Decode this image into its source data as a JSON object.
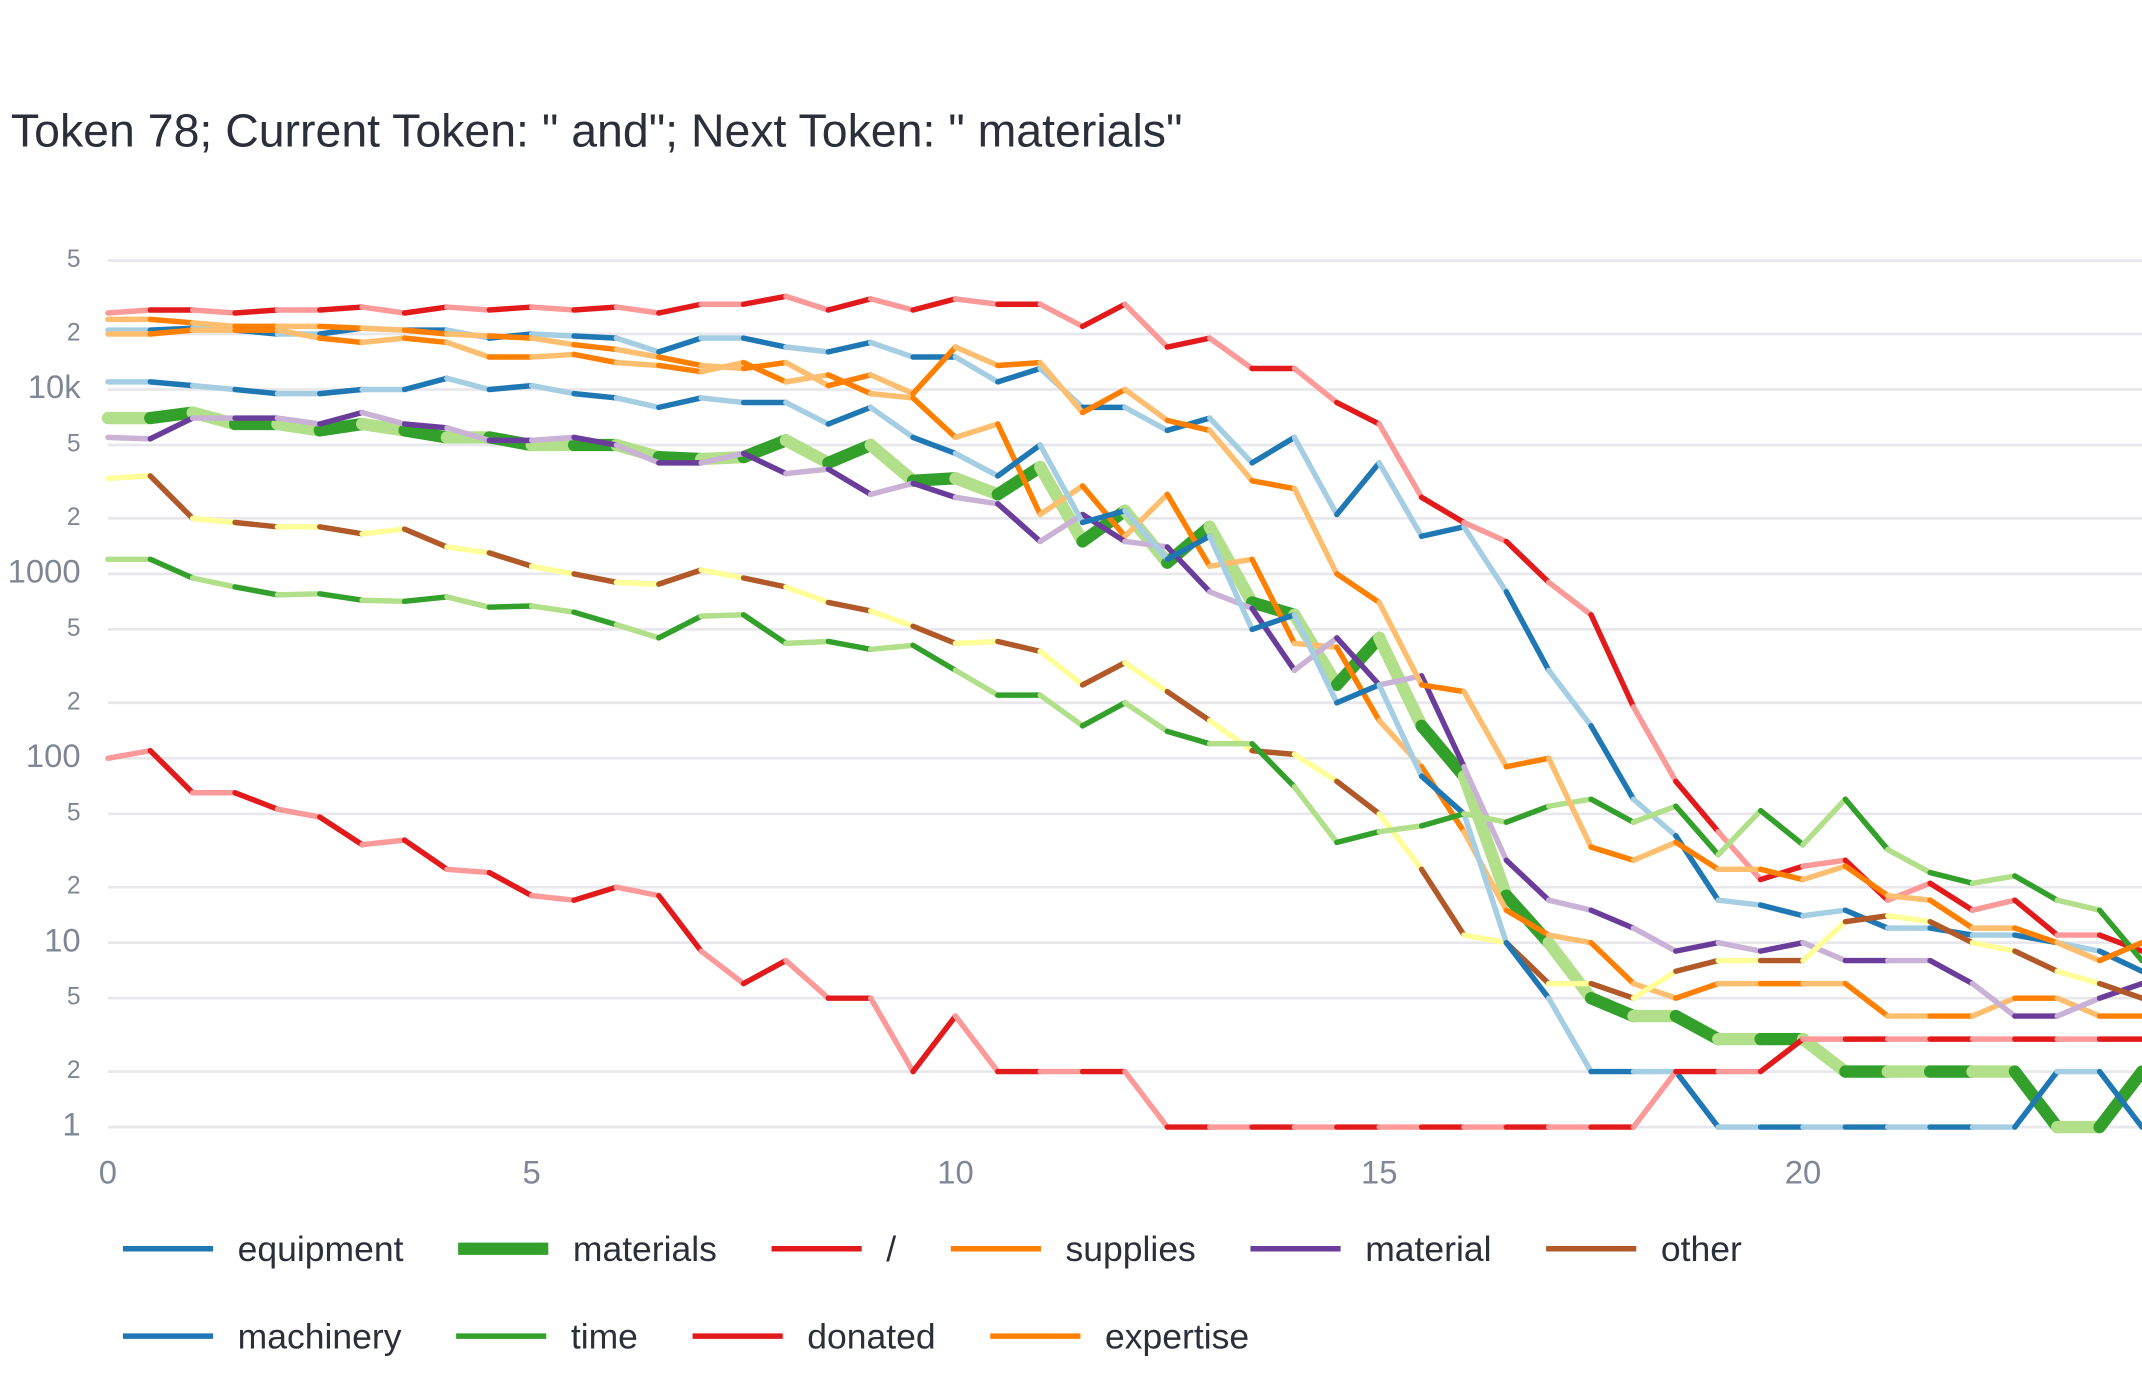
{
  "chart_data": {
    "type": "line",
    "title": "Token 78; Current Token: \" and\"; Next Token: \" materials\"",
    "x": [
      0,
      0.5,
      1,
      1.5,
      2,
      2.5,
      3,
      3.5,
      4,
      4.5,
      5,
      5.5,
      6,
      6.5,
      7,
      7.5,
      8,
      8.5,
      9,
      9.5,
      10,
      10.5,
      11,
      11.5,
      12,
      12.5,
      13,
      13.5,
      14,
      14.5,
      15,
      15.5,
      16,
      16.5,
      17,
      17.5,
      18,
      18.5,
      19,
      19.5,
      20,
      20.5,
      21,
      21.5,
      22,
      22.5,
      23,
      23.5,
      24
    ],
    "xlim": [
      0,
      24
    ],
    "xticks": [
      0,
      5,
      10,
      15,
      20
    ],
    "ylim": [
      0.55,
      60000
    ],
    "log_y": true,
    "grid": true,
    "yticks": [
      1,
      2,
      5,
      10,
      {
        "value": 20,
        "label": "2"
      },
      {
        "value": 50,
        "label": "5"
      },
      100,
      {
        "value": 200,
        "label": "2"
      },
      {
        "value": 500,
        "label": "5"
      },
      1000,
      {
        "value": 2000,
        "label": "2"
      },
      {
        "value": 5000,
        "label": "5"
      },
      {
        "value": 10000,
        "label": "10k"
      },
      {
        "value": 20000,
        "label": "2"
      },
      {
        "value": 50000,
        "label": "5"
      }
    ],
    "legend": "bottom",
    "series": [
      {
        "name": "equipment",
        "colors": [
          "#1f78b4",
          "#a6cee3"
        ],
        "width": 4,
        "values": [
          21000,
          21000,
          21500,
          21000,
          20000,
          20000,
          21500,
          21000,
          21000,
          19000,
          20000,
          19500,
          19000,
          16000,
          19000,
          19000,
          17000,
          16000,
          18000,
          15000,
          15000,
          11000,
          13000,
          8000,
          8000,
          6000,
          7000,
          4000,
          5500,
          2100,
          4000,
          1600,
          1800,
          800,
          300,
          150,
          60,
          38,
          17,
          16,
          14,
          15,
          12,
          12,
          11,
          11,
          10,
          9,
          7
        ]
      },
      {
        "name": "materials",
        "colors": [
          "#33a02c",
          "#b2df8a"
        ],
        "width": 9,
        "values": [
          7000,
          7000,
          7500,
          6500,
          6500,
          6000,
          6500,
          6000,
          5500,
          5500,
          5000,
          5000,
          5000,
          4300,
          4200,
          4300,
          5300,
          4000,
          5000,
          3200,
          3300,
          2700,
          3800,
          1500,
          2200,
          1150,
          1800,
          700,
          600,
          250,
          450,
          150,
          80,
          18,
          10,
          5,
          4,
          4,
          3,
          3,
          3,
          2,
          2,
          2,
          2,
          2,
          1,
          1,
          2
        ]
      },
      {
        "name": "/",
        "colors": [
          "#e31a1c",
          "#fb9a99"
        ],
        "width": 4,
        "values": [
          26000,
          27000,
          27000,
          26000,
          27000,
          27000,
          28000,
          26000,
          28000,
          27000,
          28000,
          27000,
          28000,
          26000,
          29000,
          29000,
          32000,
          27000,
          31000,
          27000,
          31000,
          29000,
          29000,
          22000,
          29000,
          17000,
          19000,
          13000,
          13000,
          8500,
          6500,
          2600,
          1900,
          1500,
          900,
          600,
          190,
          75,
          40,
          22,
          26,
          28,
          17,
          21,
          15,
          17,
          11,
          11,
          9
        ]
      },
      {
        "name": "supplies",
        "colors": [
          "#ff7f00",
          "#fdbf6f"
        ],
        "width": 4,
        "values": [
          20000,
          20000,
          21000,
          21000,
          21000,
          19000,
          18000,
          19000,
          18000,
          15000,
          15000,
          15500,
          14000,
          13500,
          12500,
          14000,
          11000,
          12000,
          9500,
          9000,
          5500,
          6500,
          2100,
          3000,
          1600,
          2700,
          1100,
          1200,
          420,
          400,
          160,
          90,
          40,
          15,
          11,
          10,
          6,
          5,
          6,
          6,
          6,
          6,
          4,
          4,
          4,
          5,
          5,
          4,
          4
        ]
      },
      {
        "name": "material",
        "colors": [
          "#6a3d9a",
          "#cab2d6"
        ],
        "width": 4,
        "values": [
          5500,
          5400,
          7000,
          7000,
          7000,
          6500,
          7500,
          6500,
          6200,
          5300,
          5300,
          5500,
          5000,
          4000,
          4000,
          4500,
          3500,
          3700,
          2700,
          3100,
          2600,
          2400,
          1500,
          2100,
          1500,
          1400,
          800,
          650,
          300,
          450,
          250,
          280,
          90,
          28,
          17,
          15,
          12,
          9,
          10,
          9,
          10,
          8,
          8,
          8,
          6,
          4,
          4,
          5,
          6
        ]
      },
      {
        "name": "other",
        "colors": [
          "#b15928",
          "#ffff99"
        ],
        "width": 4,
        "values": [
          3300,
          3400,
          2000,
          1900,
          1800,
          1800,
          1650,
          1750,
          1400,
          1300,
          1100,
          1000,
          900,
          880,
          1050,
          950,
          850,
          700,
          630,
          520,
          420,
          430,
          380,
          250,
          330,
          230,
          160,
          110,
          105,
          75,
          50,
          25,
          11,
          10,
          6,
          6,
          5,
          7,
          8,
          8,
          8,
          13,
          14,
          13,
          10,
          9,
          7,
          6,
          5
        ]
      },
      {
        "name": "machinery",
        "colors": [
          "#1f78b4",
          "#a6cee3"
        ],
        "width": 4,
        "values": [
          11000,
          11000,
          10500,
          10000,
          9500,
          9500,
          10000,
          10000,
          11500,
          10000,
          10500,
          9500,
          9000,
          8000,
          9000,
          8500,
          8500,
          6500,
          8000,
          5500,
          4500,
          3400,
          5000,
          1900,
          2200,
          1200,
          1600,
          500,
          600,
          200,
          250,
          80,
          50,
          10,
          5,
          2,
          2,
          2,
          1,
          1,
          1,
          1,
          1,
          1,
          1,
          1,
          2,
          2,
          1
        ]
      },
      {
        "name": "time",
        "colors": [
          "#33a02c",
          "#b2df8a"
        ],
        "width": 4,
        "values": [
          1200,
          1200,
          950,
          850,
          770,
          780,
          720,
          710,
          750,
          660,
          670,
          620,
          530,
          450,
          590,
          600,
          420,
          430,
          390,
          410,
          300,
          220,
          220,
          150,
          200,
          140,
          120,
          120,
          70,
          35,
          40,
          43,
          50,
          45,
          55,
          60,
          45,
          55,
          30,
          52,
          34,
          60,
          32,
          24,
          21,
          23,
          17,
          15,
          8
        ]
      },
      {
        "name": "donated",
        "colors": [
          "#e31a1c",
          "#fb9a99"
        ],
        "width": 4,
        "values": [
          100,
          110,
          65,
          65,
          53,
          48,
          34,
          36,
          25,
          24,
          18,
          17,
          20,
          18,
          9,
          6,
          8,
          5,
          5,
          2,
          4,
          2,
          2,
          2,
          2,
          1,
          1,
          1,
          1,
          1,
          1,
          1,
          1,
          1,
          1,
          1,
          1,
          2,
          2,
          2,
          3,
          3,
          3,
          3,
          3,
          3,
          3,
          3,
          3
        ]
      },
      {
        "name": "expertise",
        "colors": [
          "#ff7f00",
          "#fdbf6f"
        ],
        "width": 4,
        "values": [
          24000,
          24000,
          23000,
          22000,
          22000,
          22000,
          21500,
          21000,
          20000,
          19500,
          19000,
          17500,
          16500,
          15000,
          13500,
          13000,
          14000,
          10500,
          12000,
          9500,
          17000,
          13500,
          14000,
          7500,
          10000,
          6800,
          6000,
          3200,
          2900,
          1000,
          700,
          250,
          230,
          90,
          100,
          33,
          28,
          35,
          25,
          25,
          22,
          26,
          18,
          17,
          12,
          12,
          10,
          8,
          10
        ]
      }
    ]
  }
}
